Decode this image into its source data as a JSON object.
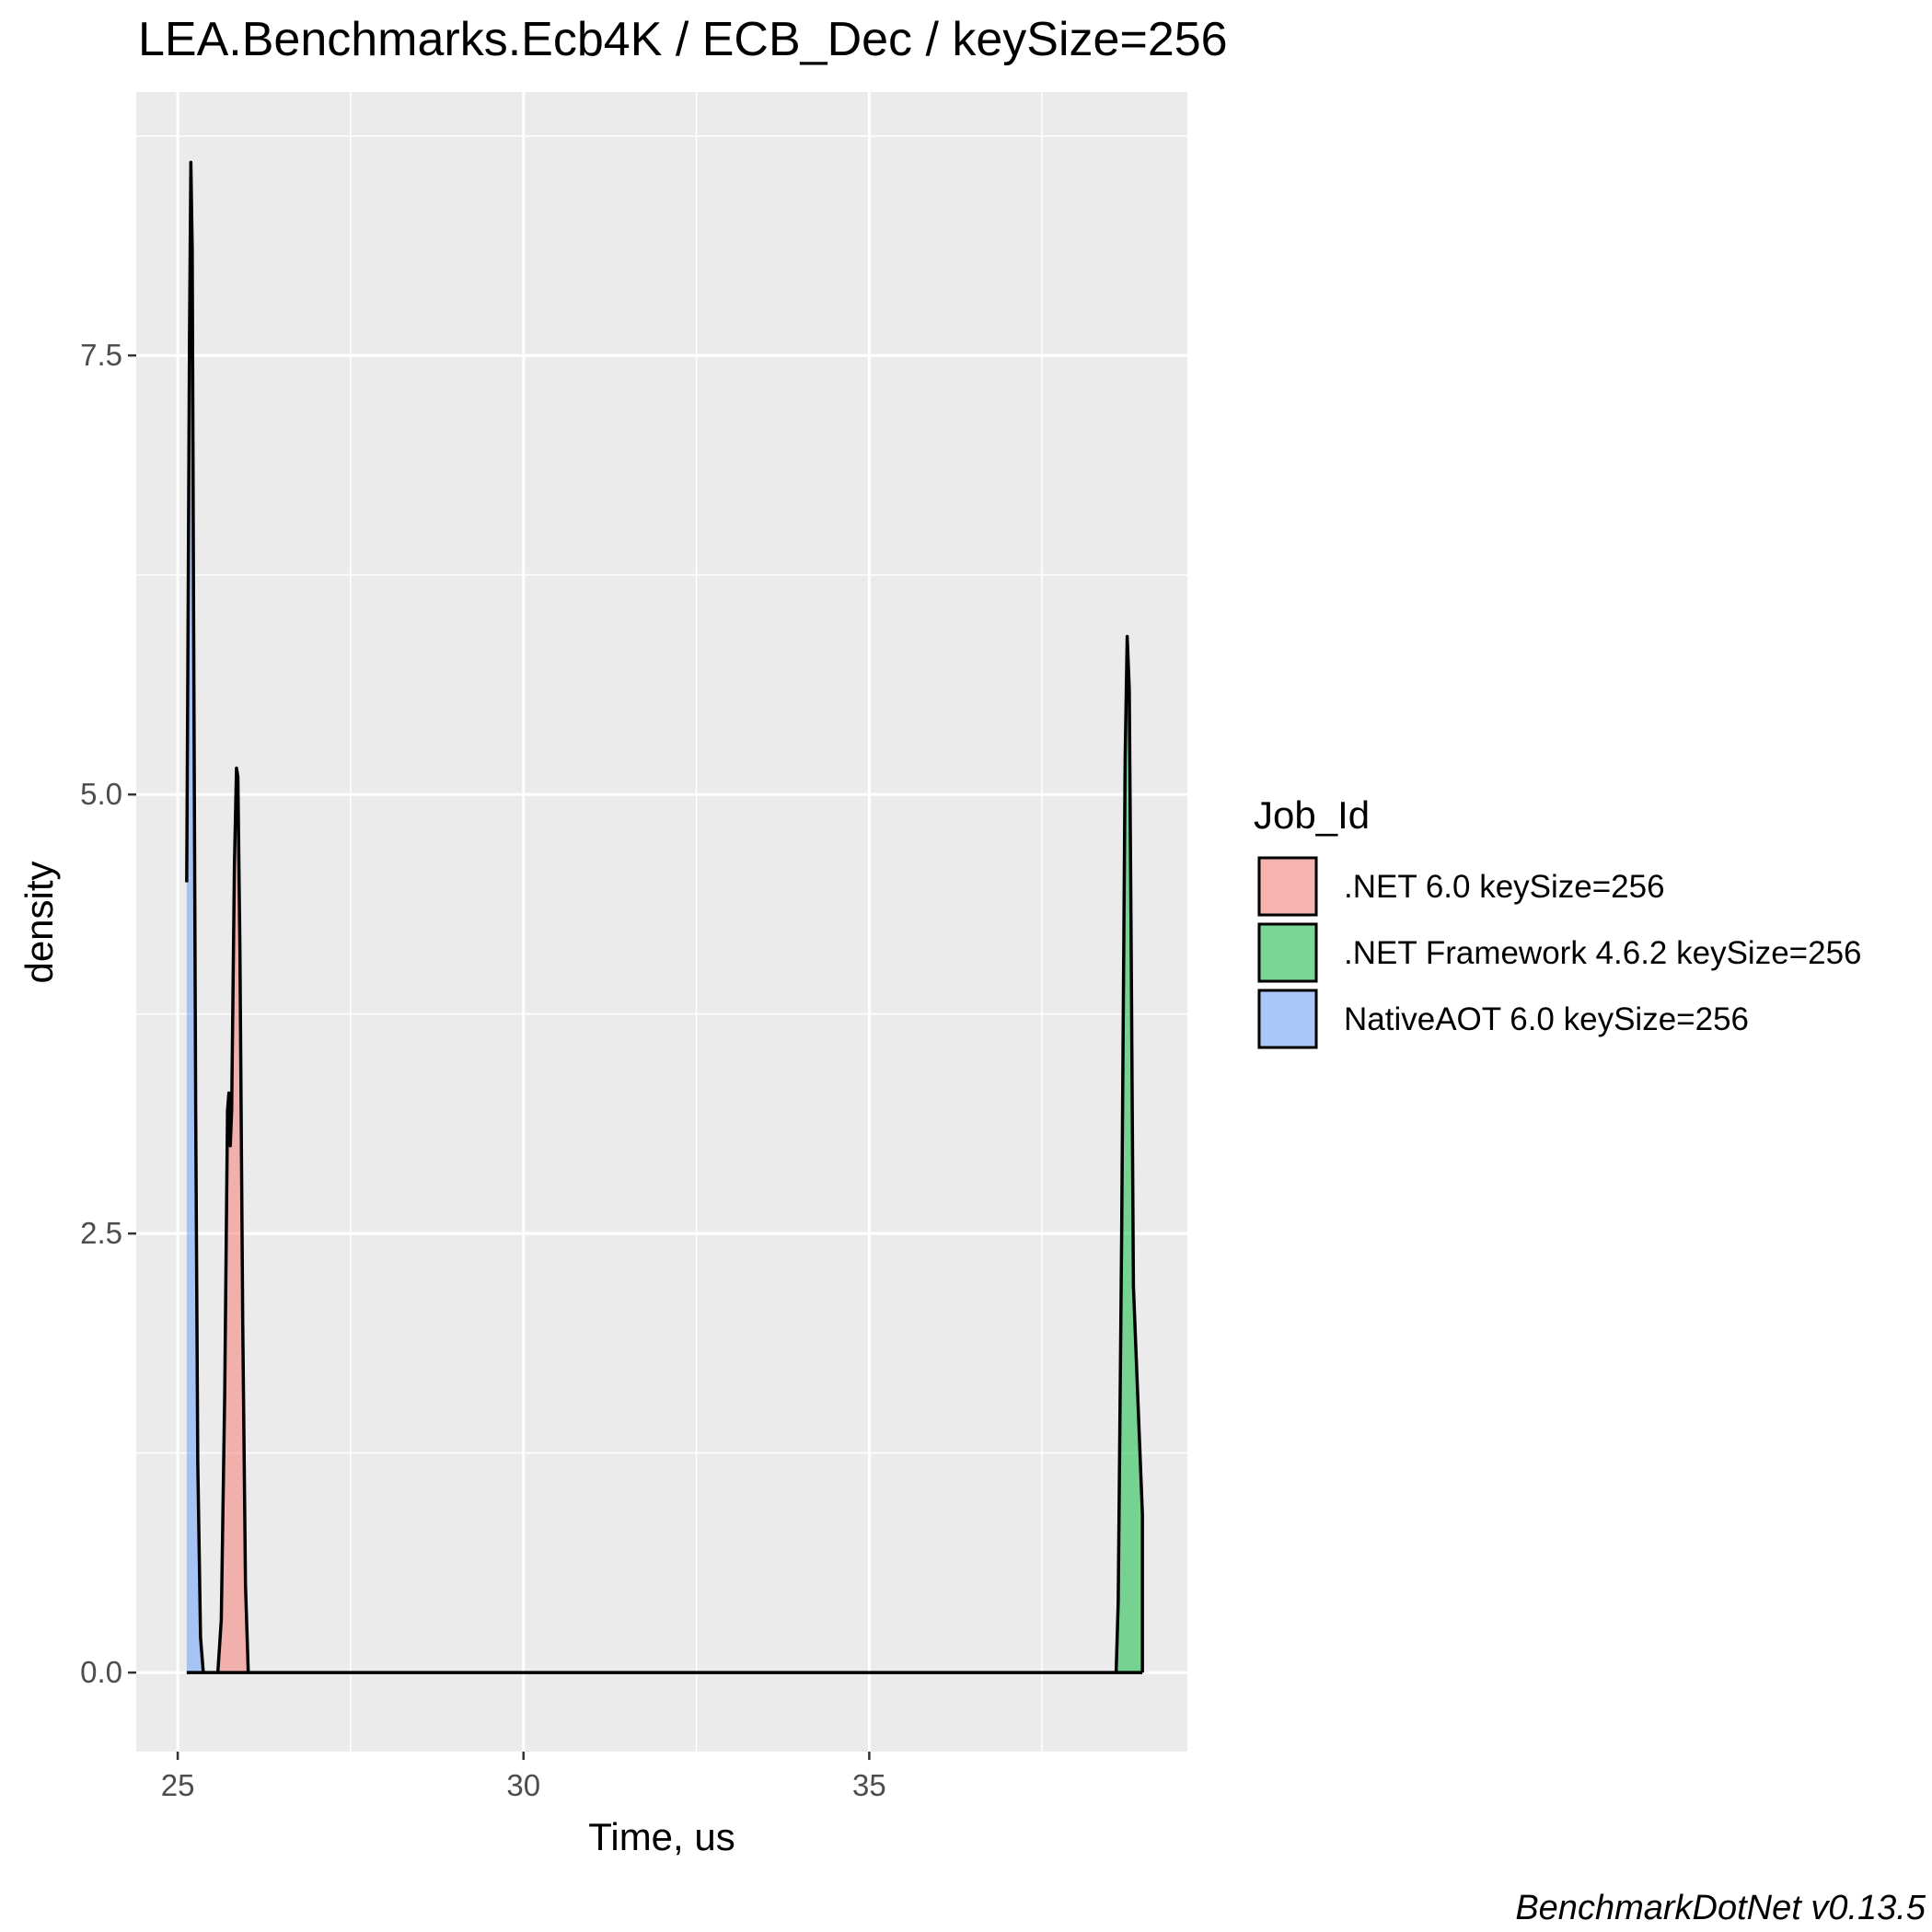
{
  "chart_data": {
    "type": "area",
    "chart_kind": "density",
    "title": "LEA.Benchmarks.Ecb4K / ECB_Dec / keySize=256",
    "xlabel": "Time, us",
    "ylabel": "density",
    "xlim": [
      24.4,
      39.6
    ],
    "ylim": [
      -0.45,
      9.0
    ],
    "x_ticks": [
      25,
      30,
      35
    ],
    "x_tick_labels": [
      "25",
      "30",
      "35"
    ],
    "y_ticks": [
      0,
      2.5,
      5,
      7.5
    ],
    "y_tick_labels": [
      "0.0",
      "2.5",
      "5.0",
      "7.5"
    ],
    "grid": true,
    "legend": {
      "title": "Job_Id",
      "position": "right"
    },
    "series": [
      {
        "name": ".NET 6.0 keySize=256",
        "color": "#F8766D",
        "points": [
          [
            25.58,
            0
          ],
          [
            25.63,
            0.3
          ],
          [
            25.68,
            1.6
          ],
          [
            25.72,
            3.2
          ],
          [
            25.74,
            3.3
          ],
          [
            25.76,
            3.0
          ],
          [
            25.78,
            3.2
          ],
          [
            25.82,
            4.6
          ],
          [
            25.85,
            5.15
          ],
          [
            25.87,
            5.1
          ],
          [
            25.9,
            4.1
          ],
          [
            25.94,
            2.0
          ],
          [
            25.98,
            0.5
          ],
          [
            26.02,
            0
          ]
        ]
      },
      {
        "name": ".NET Framework 4.6.2 keySize=256",
        "color": "#00BA38",
        "points": [
          [
            38.57,
            0
          ],
          [
            38.6,
            0.4
          ],
          [
            38.65,
            2.5
          ],
          [
            38.7,
            5.2
          ],
          [
            38.73,
            5.9
          ],
          [
            38.76,
            5.6
          ],
          [
            38.79,
            4.0
          ],
          [
            38.82,
            2.2
          ],
          [
            38.86,
            1.8
          ],
          [
            38.92,
            1.2
          ],
          [
            38.95,
            0.9
          ],
          [
            38.95,
            0
          ]
        ]
      },
      {
        "name": "NativeAOT 6.0 keySize=256",
        "color": "#619CFF",
        "points": [
          [
            25.13,
            4.5
          ],
          [
            25.15,
            6.0
          ],
          [
            25.17,
            7.6
          ],
          [
            25.19,
            8.6
          ],
          [
            25.21,
            8.1
          ],
          [
            25.23,
            6.0
          ],
          [
            25.26,
            3.2
          ],
          [
            25.29,
            1.2
          ],
          [
            25.33,
            0.2
          ],
          [
            25.37,
            0
          ]
        ]
      }
    ],
    "caption": "BenchmarkDotNet v0.13.5"
  }
}
